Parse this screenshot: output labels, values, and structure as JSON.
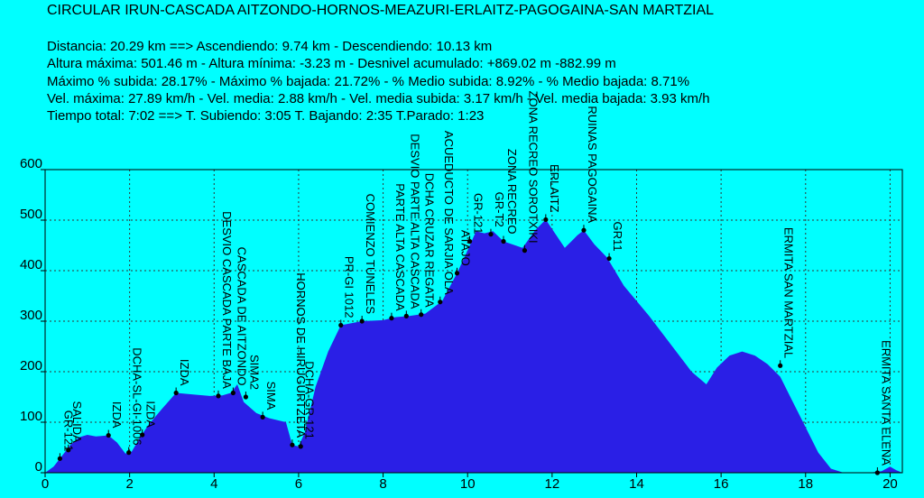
{
  "header": {
    "title": "CIRCULAR IRUN-CASCADA AITZONDO-HORNOS-MEAZURI-ERLAITZ-PAGOGAINA-SAN MARTZIAL",
    "stats": [
      "Distancia: 20.29 km  ==>  Ascendiendo: 9.74 km - Descendiendo: 10.13 km",
      "Altura máxima: 501.46 m - Altura mínima: -3.23 m - Desnivel acumulado: +869.02 m  -882.99 m",
      "Máximo % subida: 28.17%  - Máximo % bajada: 21.72%  - % Medio subida: 8.92%  - % Medio bajada: 8.71%",
      "Vel. máxima: 27.89 km/h - Vel. media: 2.88 km/h - Vel. media subida: 3.17 km/h - Vel. media bajada: 3.93 km/h",
      "Tiempo total: 7:02  ==>  T. Subiendo: 3:05  T. Bajando: 2:35  T.Parado: 1:23"
    ]
  },
  "colors": {
    "background": "#00ffff",
    "fill": "#2a1fe6",
    "grid": "#333333",
    "axis": "#000000"
  },
  "chart_data": {
    "type": "area",
    "xlim": [
      0,
      20.29
    ],
    "ylim": [
      0,
      600
    ],
    "xticks": [
      "0",
      "2",
      "4",
      "6",
      "8",
      "10",
      "12",
      "14",
      "16",
      "18",
      "20"
    ],
    "yticks": [
      "0",
      "100",
      "200",
      "300",
      "400",
      "500",
      "600"
    ],
    "grid": true,
    "profile": [
      [
        0,
        0
      ],
      [
        0.2,
        12
      ],
      [
        0.35,
        28
      ],
      [
        0.6,
        55
      ],
      [
        0.8,
        70
      ],
      [
        1.0,
        75
      ],
      [
        1.2,
        72
      ],
      [
        1.5,
        74
      ],
      [
        1.7,
        60
      ],
      [
        1.9,
        38
      ],
      [
        2.05,
        42
      ],
      [
        2.25,
        70
      ],
      [
        2.45,
        95
      ],
      [
        2.75,
        125
      ],
      [
        3.1,
        158
      ],
      [
        3.5,
        155
      ],
      [
        3.9,
        152
      ],
      [
        4.2,
        153
      ],
      [
        4.4,
        158
      ],
      [
        4.55,
        175
      ],
      [
        4.7,
        140
      ],
      [
        5.0,
        118
      ],
      [
        5.3,
        108
      ],
      [
        5.7,
        100
      ],
      [
        5.85,
        55
      ],
      [
        6.0,
        52
      ],
      [
        6.15,
        80
      ],
      [
        6.4,
        170
      ],
      [
        6.7,
        240
      ],
      [
        7.0,
        292
      ],
      [
        7.5,
        300
      ],
      [
        8.0,
        302
      ],
      [
        8.3,
        308
      ],
      [
        8.6,
        310
      ],
      [
        9.0,
        315
      ],
      [
        9.4,
        340
      ],
      [
        9.75,
        395
      ],
      [
        10.0,
        440
      ],
      [
        10.2,
        478
      ],
      [
        10.4,
        474
      ],
      [
        10.6,
        478
      ],
      [
        10.85,
        458
      ],
      [
        11.3,
        445
      ],
      [
        11.6,
        480
      ],
      [
        11.85,
        501
      ],
      [
        12.1,
        470
      ],
      [
        12.3,
        445
      ],
      [
        12.6,
        470
      ],
      [
        12.75,
        480
      ],
      [
        13.0,
        452
      ],
      [
        13.3,
        426
      ],
      [
        13.7,
        370
      ],
      [
        14.3,
        310
      ],
      [
        14.8,
        255
      ],
      [
        15.3,
        200
      ],
      [
        15.65,
        175
      ],
      [
        15.9,
        208
      ],
      [
        16.2,
        232
      ],
      [
        16.5,
        240
      ],
      [
        16.8,
        232
      ],
      [
        17.1,
        215
      ],
      [
        17.4,
        190
      ],
      [
        17.7,
        140
      ],
      [
        18.0,
        90
      ],
      [
        18.3,
        40
      ],
      [
        18.6,
        8
      ],
      [
        18.9,
        0
      ],
      [
        19.5,
        0
      ],
      [
        19.8,
        3
      ],
      [
        20.0,
        12
      ],
      [
        20.15,
        5
      ],
      [
        20.29,
        0
      ]
    ],
    "annotations": [
      {
        "label": "GR-121",
        "x": 0.35,
        "y": 28
      },
      {
        "label": "SALIDA",
        "x": 0.55,
        "y": 45
      },
      {
        "label": "IZDA",
        "x": 1.5,
        "y": 74
      },
      {
        "label": "DCHA-SL-GI-1006",
        "x": 1.98,
        "y": 40
      },
      {
        "label": "IZDA",
        "x": 2.3,
        "y": 75
      },
      {
        "label": "IZDA",
        "x": 3.1,
        "y": 158
      },
      {
        "label": "DESVIO CASCADA PARTE BAJA",
        "x": 4.1,
        "y": 152
      },
      {
        "label": "CASCADA DE AITZONDO",
        "x": 4.45,
        "y": 158
      },
      {
        "label": "SIMA2",
        "x": 4.75,
        "y": 150
      },
      {
        "label": "SIMA",
        "x": 5.15,
        "y": 110
      },
      {
        "label": "HORNOS DE HIRUGURTZETA",
        "x": 5.85,
        "y": 55
      },
      {
        "label": "DCHA-GR-121",
        "x": 6.05,
        "y": 52
      },
      {
        "label": "PR-GI 1012",
        "x": 7.0,
        "y": 292
      },
      {
        "label": "COMIENZO TUNELES",
        "x": 7.5,
        "y": 300
      },
      {
        "label": "PARTE ALTA CASCADA",
        "x": 8.2,
        "y": 306
      },
      {
        "label": "DESVIO PARTE ALTA CASCADA",
        "x": 8.55,
        "y": 310
      },
      {
        "label": "DCHA CRUZAR REGATA",
        "x": 8.9,
        "y": 313
      },
      {
        "label": "ACUEDUCTO DE SARJIA OLA",
        "x": 9.35,
        "y": 338
      },
      {
        "label": "ATAJO",
        "x": 9.75,
        "y": 395
      },
      {
        "label": "GR-121",
        "x": 10.05,
        "y": 458
      },
      {
        "label": "GR-T2",
        "x": 10.55,
        "y": 472
      },
      {
        "label": "ZONA RECREO",
        "x": 10.85,
        "y": 458
      },
      {
        "label": "ZONA RECREO SOROTXIKI",
        "x": 11.35,
        "y": 440
      },
      {
        "label": "ERLAITZ",
        "x": 11.85,
        "y": 501
      },
      {
        "label": "RUINAS PAGOGAINA",
        "x": 12.75,
        "y": 480
      },
      {
        "label": "GR11",
        "x": 13.35,
        "y": 424
      },
      {
        "label": "ERMITA SAN MARTZIAL",
        "x": 17.4,
        "y": 212
      },
      {
        "label": "ERMITA SANTA ELENA",
        "x": 19.7,
        "y": 0
      }
    ]
  }
}
